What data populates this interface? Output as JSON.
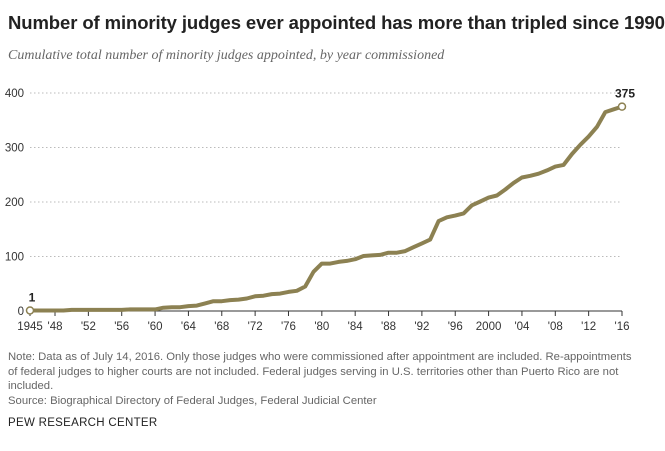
{
  "title": "Number of minority judges ever appointed has more than tripled since 1990",
  "subtitle": "Cumulative total number of minority judges appointed, by year commissioned",
  "note": "Note: Data as of July 14, 2016. Only those judges who were commissioned after appointment are included. Re-appointments of federal judges to higher courts are not included. Federal judges serving in U.S. territories other than Puerto Rico are not included.",
  "source": "Source: Biographical Directory of Federal Judges, Federal Judicial Center",
  "brand": "PEW RESEARCH CENTER",
  "colors": {
    "line": "#8c8152",
    "grid": "#bbbbbb",
    "axis": "#333333",
    "text": "#333333"
  },
  "chart_data": {
    "type": "line",
    "title": "Number of minority judges ever appointed has more than tripled since 1990",
    "subtitle": "Cumulative total number of minority judges appointed, by year commissioned",
    "xlabel": "",
    "ylabel": "",
    "xlim": [
      1945,
      2016
    ],
    "ylim": [
      0,
      400
    ],
    "grid": true,
    "y_ticks": [
      0,
      100,
      200,
      300,
      400
    ],
    "x_tick_labels": [
      {
        "year": 1945,
        "label": "1945"
      },
      {
        "year": 1948,
        "label": "'48"
      },
      {
        "year": 1952,
        "label": "'52"
      },
      {
        "year": 1956,
        "label": "'56"
      },
      {
        "year": 1960,
        "label": "'60"
      },
      {
        "year": 1964,
        "label": "'64"
      },
      {
        "year": 1968,
        "label": "'68"
      },
      {
        "year": 1972,
        "label": "'72"
      },
      {
        "year": 1976,
        "label": "'76"
      },
      {
        "year": 1980,
        "label": "'80"
      },
      {
        "year": 1984,
        "label": "'84"
      },
      {
        "year": 1988,
        "label": "'88"
      },
      {
        "year": 1992,
        "label": "'92"
      },
      {
        "year": 1996,
        "label": "'96"
      },
      {
        "year": 2000,
        "label": "2000"
      },
      {
        "year": 2004,
        "label": "'04"
      },
      {
        "year": 2008,
        "label": "'08"
      },
      {
        "year": 2012,
        "label": "'12"
      },
      {
        "year": 2016,
        "label": "'16"
      }
    ],
    "x": [
      1945,
      1946,
      1947,
      1948,
      1949,
      1950,
      1951,
      1952,
      1953,
      1954,
      1955,
      1956,
      1957,
      1958,
      1959,
      1960,
      1961,
      1962,
      1963,
      1964,
      1965,
      1966,
      1967,
      1968,
      1969,
      1970,
      1971,
      1972,
      1973,
      1974,
      1975,
      1976,
      1977,
      1978,
      1979,
      1980,
      1981,
      1982,
      1983,
      1984,
      1985,
      1986,
      1987,
      1988,
      1989,
      1990,
      1991,
      1992,
      1993,
      1994,
      1995,
      1996,
      1997,
      1998,
      1999,
      2000,
      2001,
      2002,
      2003,
      2004,
      2005,
      2006,
      2007,
      2008,
      2009,
      2010,
      2011,
      2012,
      2013,
      2014,
      2015,
      2016
    ],
    "series": [
      {
        "values": [
          1,
          1,
          1,
          1,
          1,
          2,
          2,
          2,
          2,
          2,
          2,
          2,
          3,
          3,
          3,
          3,
          6,
          7,
          7,
          9,
          10,
          14,
          18,
          18,
          20,
          21,
          23,
          27,
          28,
          31,
          32,
          35,
          37,
          45,
          72,
          87,
          87,
          90,
          92,
          95,
          101,
          102,
          103,
          107,
          107,
          110,
          117,
          124,
          131,
          165,
          172,
          175,
          179,
          194,
          201,
          208,
          212,
          223,
          235,
          245,
          248,
          252,
          258,
          265,
          268,
          288,
          305,
          320,
          338,
          365,
          370,
          375
        ]
      }
    ],
    "annotations": [
      {
        "x": 1945,
        "y": 1,
        "label": "1"
      },
      {
        "x": 2016,
        "y": 375,
        "label": "375"
      }
    ]
  }
}
